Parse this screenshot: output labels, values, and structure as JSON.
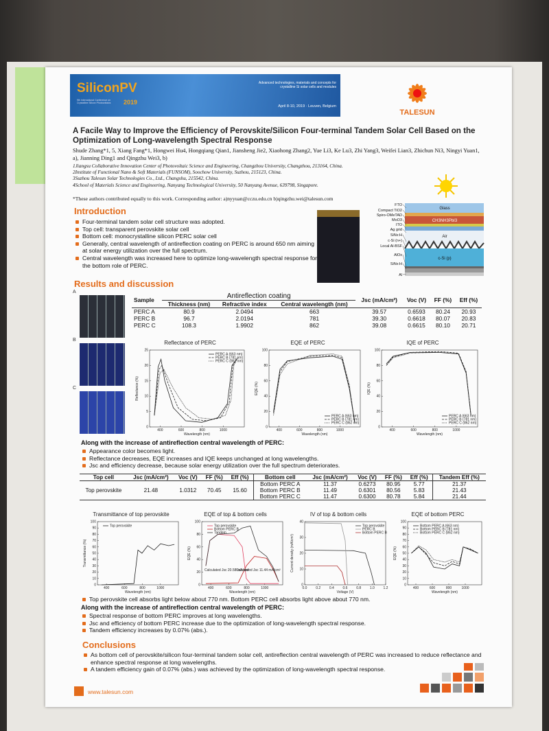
{
  "header": {
    "conference_name": "SiliconPV",
    "conference_year": "2019",
    "conference_subtitle": "9th International Conference on Crystalline Silicon Photovoltaics",
    "banner_text": "Advanced technologies, materials and concepts for crystalline Si solar cells and modules",
    "banner_date": "April 8-10, 2019 · Leuven, Belgium",
    "company": "TALESUN"
  },
  "title": "A Facile Way to Improve the Efficiency of Perovskite/Silicon Four-terminal Tandem Solar Cell Based on the Optimization of Long-wavelength Spectral Response",
  "authors": "Shude Zhang*1, 5, Xiang Fang*1, Hongwei Hu4, Hongqiang Qian1, Jiansheng Jie2, Xiaohong Zhang2, Yue Li3, Ke Lu3, Zhi Yang3, Weifei Lian3, Zhichun Ni3, Ningyi Yuan1, a), Jianning Ding1 and Qingzhu Wei3, b)",
  "affiliations": [
    "1Jiangsu Collaborative Innovation Center of Photovoltaic Science and Engineering, Changzhou University, Changzhou, 213164, China.",
    "2Institute of Functional Nano & Soft Materials (FUNSOM), Soochow University, Suzhou, 215123, China.",
    "3Suzhou Talesun Solar Technologies Co., Ltd., Changshu, 215542, China.",
    "4School of Materials Science and Engineering, Nanyang Technological University, 50 Nanyang Avenue, 639798, Singapore."
  ],
  "note": "*These authors contributed equally to this work. Corresponding author: a)nyyuan@cczu.edu.cn b)qingzhu.wei@talesun.com",
  "introduction": {
    "heading": "Introduction",
    "bullets": [
      "Four-terminal tandem solar cell structure was adopted.",
      "Top cell: transparent perovskite solar cell",
      "Bottom cell: monocrystalline silicon PERC solar cell",
      "Generally, central wavelength of antireflection coating on PERC is around 650 nm aiming at solar energy utilization over the full spectrum.",
      "Central wavelength was increased here to optimize long-wavelength spectral response for the bottom role of PERC."
    ]
  },
  "device_stack": {
    "layers": [
      "FTO",
      "Compact TiO2",
      "Spiro-OMeTAD",
      "MoO3",
      "ITO",
      "Ag grid",
      "SiNx:H",
      "c-Si (n+)",
      "Local Al-BSF",
      "AlOx",
      "SiNx:H",
      "Al"
    ],
    "inner": [
      "Glass",
      "CH3NH3PbI3",
      "Air",
      "c-Si (p)"
    ]
  },
  "results": {
    "heading": "Results and discussion",
    "samples": [
      "A",
      "B",
      "C"
    ],
    "table1": {
      "group_header": "Antireflection coating",
      "headers": [
        "Sample",
        "Thickness (nm)",
        "Refractive index",
        "Central wavelength (nm)",
        "Jsc (mA/cm²)",
        "Voc (V)",
        "FF (%)",
        "Eff (%)"
      ],
      "rows": [
        [
          "PERC A",
          "80.9",
          "2.0494",
          "663",
          "39.57",
          "0.6593",
          "80.24",
          "20.93"
        ],
        [
          "PERC B",
          "96.7",
          "2.0194",
          "781",
          "39.30",
          "0.6618",
          "80.07",
          "20.83"
        ],
        [
          "PERC C",
          "108.3",
          "1.9902",
          "862",
          "39.08",
          "0.6615",
          "80.10",
          "20.71"
        ]
      ]
    },
    "charts": [
      {
        "title": "Reflectance of PERC",
        "xlabel": "Wavelength (nm)",
        "ylabel": "Reflectance (%)",
        "xlim": [
          300,
          1200
        ],
        "ylim": [
          0,
          25
        ],
        "xticks": [
          400,
          600,
          800,
          1000
        ],
        "yticks": [
          0,
          5,
          10,
          15,
          20,
          25
        ],
        "legend": [
          "PERC A (663 nm)",
          "PERC B (781 nm)",
          "PERC C (862 nm)"
        ]
      },
      {
        "title": "EQE of PERC",
        "xlabel": "Wavelength (nm)",
        "ylabel": "EQE (%)",
        "xlim": [
          300,
          1200
        ],
        "ylim": [
          0,
          100
        ],
        "xticks": [
          400,
          600,
          800,
          1000
        ],
        "yticks": [
          0,
          20,
          40,
          60,
          80,
          100
        ],
        "legend": [
          "PERC A (663 nm)",
          "PERC B (781 nm)",
          "PERC C (862 nm)"
        ]
      },
      {
        "title": "IQE of PERC",
        "xlabel": "Wavelength (nm)",
        "ylabel": "IQE (%)",
        "xlim": [
          300,
          1200
        ],
        "ylim": [
          0,
          100
        ],
        "xticks": [
          400,
          600,
          800,
          1000
        ],
        "yticks": [
          0,
          20,
          40,
          60,
          80,
          100
        ],
        "legend": [
          "PERC A (663 nm)",
          "PERC B (781 nm)",
          "PERC C (862 nm)"
        ]
      },
      {
        "title": "Transmittance of top perovskite",
        "xlabel": "Wavelength (nm)",
        "ylabel": "Transmittance (%)",
        "xlim": [
          300,
          1200
        ],
        "ylim": [
          0,
          100
        ],
        "xticks": [
          400,
          600,
          800,
          1000
        ],
        "yticks": [
          0,
          10,
          20,
          30,
          40,
          50,
          60,
          70,
          80,
          90,
          100
        ],
        "legend": [
          "Top perovskite"
        ]
      },
      {
        "title": "EQE of top & bottom cells",
        "xlabel": "Wavelength (nm)",
        "ylabel": "EQE (%)",
        "xlim": [
          300,
          1200
        ],
        "ylim": [
          0,
          100
        ],
        "xticks": [
          400,
          600,
          800,
          1000
        ],
        "yticks": [
          0,
          20,
          40,
          60,
          80,
          100
        ],
        "legend": [
          "Top perovskite",
          "Bottom PERC B",
          "Tandem"
        ],
        "annotations": [
          "Calculated Jsc 20.58 mA/cm²",
          "Calculated Jsc 11.44 mA/cm²"
        ]
      },
      {
        "title": "IV of top & bottom cells",
        "xlabel": "Voltage (V)",
        "ylabel": "Current density (mA/cm²)",
        "xlim": [
          0,
          1.2
        ],
        "ylim": [
          0,
          40
        ],
        "xticks": [
          {
            "value": 0,
            "label": "0.0"
          },
          0.2,
          0.4,
          0.6,
          0.8,
          {
            "value": 1,
            "label": "1.0"
          },
          1.2
        ],
        "yticks": [
          0,
          10,
          20,
          30,
          40
        ],
        "legend": [
          "Top perovskite",
          "PERC B",
          "Bottom PERC B"
        ]
      },
      {
        "title": "EQE of bottom PERC",
        "xlabel": "Wavelength (nm)",
        "ylabel": "EQE (%)",
        "xlim": [
          300,
          1200
        ],
        "ylim": [
          0,
          100
        ],
        "xticks": [
          400,
          600,
          800,
          1000
        ],
        "yticks": [
          0,
          10,
          20,
          30,
          40,
          50,
          60,
          70,
          80,
          90,
          100
        ],
        "legend": [
          "Bottom PERC A (663 nm)",
          "Bottom PERC B (781 nm)",
          "Bottom PERC C (862 nm)"
        ]
      }
    ],
    "block1": {
      "heading": "Along with the increase of antireflection central wavelength of PERC:",
      "bullets": [
        "Appearance color becomes light.",
        "Reflectance decreases, EQE increases and IQE keeps unchanged at long wavelengths.",
        "Jsc and efficiency decrease, because solar energy utilization over the full spectrum deteriorates."
      ]
    },
    "table2": {
      "headers": [
        "Top cell",
        "Jsc (mA/cm²)",
        "Voc (V)",
        "FF (%)",
        "Eff (%)",
        "Bottom cell",
        "Jsc (mA/cm²)",
        "Voc (V)",
        "FF (%)",
        "Eff (%)",
        "Tandem Eff (%)"
      ],
      "top_row": [
        "Top perovskite",
        "21.48",
        "1.0312",
        "70.45",
        "15.60"
      ],
      "bottom_rows": [
        [
          "Bottom PERC A",
          "11.37",
          "0.6273",
          "80.95",
          "5.77",
          "21.37"
        ],
        [
          "Bottom PERC B",
          "11.49",
          "0.6301",
          "80.56",
          "5.83",
          "21.43"
        ],
        [
          "Bottom PERC C",
          "11.47",
          "0.6300",
          "80.78",
          "5.84",
          "21.44"
        ]
      ]
    },
    "block2": {
      "lead": [
        "Top perovskite cell absorbs light below about 770 nm. Bottom PERC cell absorbs light above about 770 nm."
      ],
      "heading": "Along with the increase of antireflection central wavelength of PERC:",
      "bullets": [
        "Spectral response of bottom PERC improves at long wavelengths.",
        "Jsc and efficiency of bottom PERC increase due to the optimization of long-wavelength spectral response.",
        "Tandem efficiency increases by 0.07% (abs.)."
      ]
    }
  },
  "conclusions": {
    "heading": "Conclusions",
    "bullets": [
      "As bottom cell of perovskite/silicon four-terminal tandem solar cell, antireflection central wavelength of PERC was increased to reduce reflectance and enhance spectral response at long wavelengths.",
      "A tandem efficiency gain of 0.07% (abs.) was achieved by the optimization of long-wavelength spectral response."
    ]
  },
  "website": "www.talesun.com"
}
